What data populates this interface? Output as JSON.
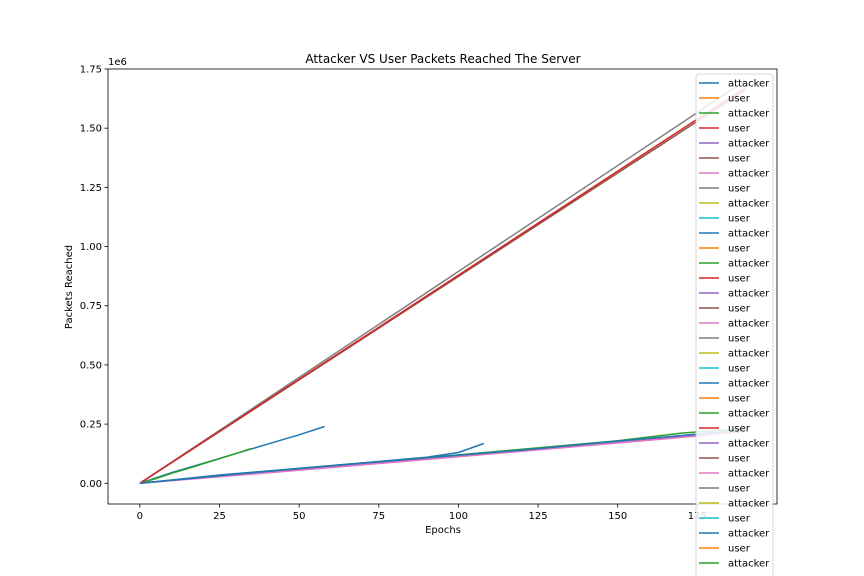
{
  "chart_data": {
    "type": "line",
    "title": "Attacker VS User Packets Reached The Server",
    "xlabel": "Epochs",
    "ylabel": "Packets Reached",
    "y_offset_label": "1e6",
    "xlim": [
      -10,
      200
    ],
    "ylim": [
      -87500,
      1750000
    ],
    "xticks": [
      0,
      25,
      50,
      75,
      100,
      125,
      150,
      175
    ],
    "xtick_labels": [
      "0",
      "25",
      "50",
      "75",
      "100",
      "125",
      "150",
      "175"
    ],
    "yticks": [
      0,
      250000,
      500000,
      750000,
      1000000,
      1250000,
      1500000,
      1750000
    ],
    "ytick_labels": [
      "0.00",
      "0.25",
      "0.50",
      "0.75",
      "1.00",
      "1.25",
      "1.50",
      "1.75"
    ],
    "legend_position": "top-right",
    "legend": [
      "attacker",
      "user",
      "attacker",
      "user",
      "attacker",
      "user",
      "attacker",
      "user",
      "attacker",
      "user",
      "attacker",
      "user",
      "attacker",
      "user",
      "attacker",
      "user",
      "attacker",
      "user",
      "attacker",
      "user",
      "attacker",
      "user",
      "attacker",
      "user",
      "attacker",
      "user",
      "attacker",
      "user",
      "attacker",
      "user",
      "attacker",
      "user",
      "attacker",
      "user"
    ],
    "colors": [
      "#1f77b4",
      "#ff7f0e",
      "#2ca02c",
      "#d62728",
      "#9467bd",
      "#8c564b",
      "#e377c2",
      "#7f7f7f",
      "#bcbd22",
      "#17becf"
    ],
    "series": [
      {
        "name": "attacker",
        "color": "#1f77b4",
        "x": [
          0,
          10,
          20,
          30,
          40,
          50,
          58
        ],
        "y": [
          0,
          45000,
          85000,
          125000,
          165000,
          205000,
          240000
        ]
      },
      {
        "name": "attacker",
        "color": "#2ca02c",
        "x": [
          0,
          5,
          10,
          15,
          20,
          25,
          30,
          35
        ],
        "y": [
          0,
          20000,
          42000,
          62000,
          83000,
          104000,
          125000,
          147000
        ]
      },
      {
        "name": "user",
        "color": "#d62728",
        "x": [
          0,
          18
        ],
        "y": [
          0,
          160000
        ]
      },
      {
        "name": "user",
        "color": "#8c564b",
        "x": [
          0,
          190
        ],
        "y": [
          0,
          1660000
        ]
      },
      {
        "name": "user",
        "color": "#7f7f7f",
        "x": [
          0,
          190
        ],
        "y": [
          0,
          1700000
        ]
      },
      {
        "name": "user",
        "color": "#d62728",
        "x": [
          0,
          190
        ],
        "y": [
          0,
          1670000
        ]
      },
      {
        "name": "attacker",
        "color": "#1f77b4",
        "x": [
          0,
          25,
          50,
          75,
          90,
          100,
          108
        ],
        "y": [
          0,
          35000,
          63000,
          92000,
          110000,
          130000,
          168000
        ]
      },
      {
        "name": "attacker",
        "color": "#2ca02c",
        "x": [
          0,
          50,
          100,
          150,
          170,
          190
        ],
        "y": [
          0,
          63000,
          120000,
          180000,
          212000,
          232000
        ]
      },
      {
        "name": "attacker",
        "color": "#9467bd",
        "x": [
          0,
          50,
          100,
          150,
          190
        ],
        "y": [
          0,
          58000,
          115000,
          172000,
          222000
        ]
      },
      {
        "name": "attacker",
        "color": "#e377c2",
        "x": [
          0,
          50,
          100,
          150,
          190
        ],
        "y": [
          0,
          55000,
          112000,
          170000,
          218000
        ]
      },
      {
        "name": "attacker",
        "color": "#1f77b4",
        "x": [
          0,
          30,
          60,
          90,
          120,
          150,
          190
        ],
        "y": [
          0,
          38000,
          74000,
          108000,
          140000,
          178000,
          226000
        ]
      }
    ]
  }
}
